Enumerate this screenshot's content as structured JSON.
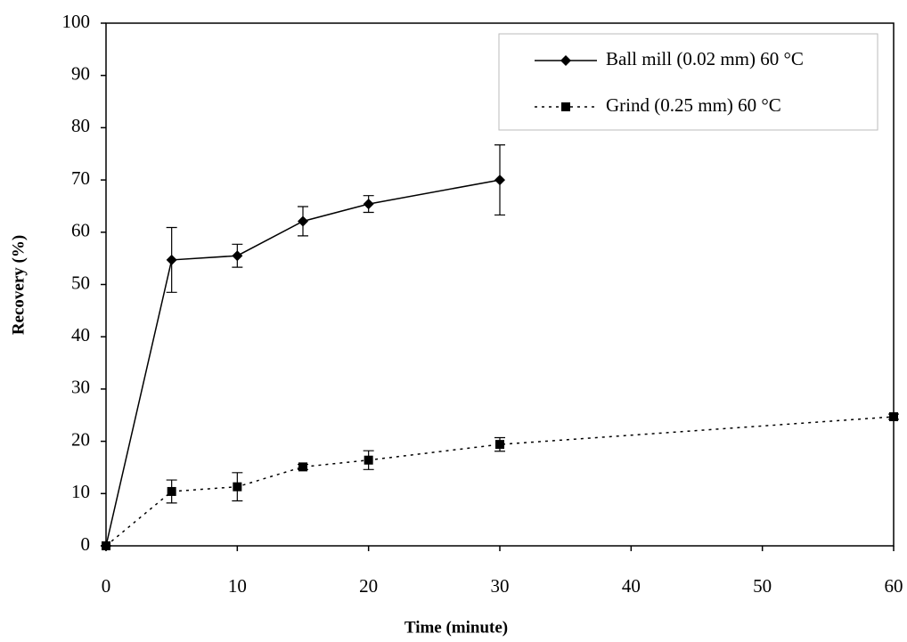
{
  "chart_data": {
    "type": "line",
    "x_label": "Time (minute)",
    "y_label": "Recovery (%)",
    "xlim": [
      0,
      60
    ],
    "xticks": [
      0,
      10,
      20,
      30,
      40,
      50,
      60
    ],
    "ylim": [
      0,
      100
    ],
    "yticks": [
      0,
      10,
      20,
      30,
      40,
      50,
      60,
      70,
      80,
      90,
      100
    ],
    "grid": false,
    "legend": "upper right",
    "series": [
      {
        "name": "Ball mill (0.02 mm) 60 °C",
        "color": "#000000",
        "line_style": "solid",
        "marker": "diamond",
        "x": [
          0,
          5,
          10,
          15,
          20,
          30
        ],
        "values": [
          0,
          54.7,
          55.5,
          62.1,
          65.4,
          70.0
        ],
        "errors": [
          0,
          6.2,
          2.2,
          2.8,
          1.6,
          6.7
        ]
      },
      {
        "name": "Grind (0.25 mm) 60 °C",
        "color": "#000000",
        "line_style": "dotted",
        "marker": "square",
        "x": [
          0,
          5,
          10,
          15,
          20,
          30,
          60
        ],
        "values": [
          0,
          10.4,
          11.3,
          15.1,
          16.4,
          19.4,
          24.7
        ],
        "errors": [
          0,
          2.2,
          2.7,
          0.5,
          1.8,
          1.3,
          0.5
        ]
      }
    ]
  }
}
